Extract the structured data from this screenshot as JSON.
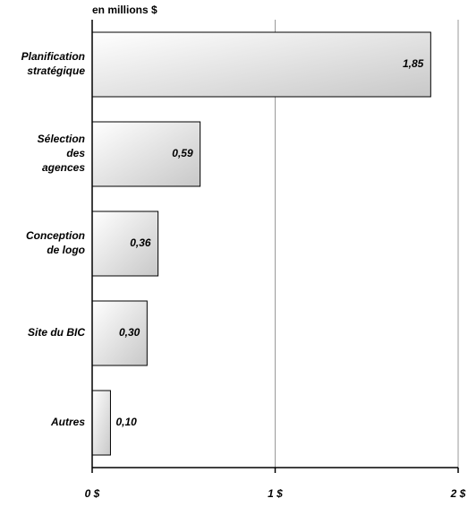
{
  "chart_data": {
    "type": "hbar",
    "title": "en millions $",
    "categories": [
      "Planification\nstratégique",
      "Sélection\ndes\nagences",
      "Conception\nde logo",
      "Site du BIC",
      "Autres"
    ],
    "values": [
      1.85,
      0.59,
      0.36,
      0.3,
      0.1
    ],
    "value_labels": [
      "1,85",
      "0,59",
      "0,36",
      "0,30",
      "0,10"
    ],
    "xlim": [
      0,
      2
    ],
    "xticks": [
      {
        "value": 0,
        "label": "0 $"
      },
      {
        "value": 1,
        "label": "1 $"
      },
      {
        "value": 2,
        "label": "2 $"
      }
    ],
    "grid": true
  }
}
